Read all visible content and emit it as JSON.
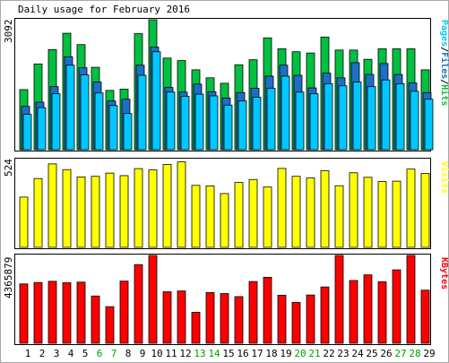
{
  "chart_data": {
    "type": "bar",
    "title": "Daily usage for February 2016",
    "categories": [
      "1",
      "2",
      "3",
      "4",
      "5",
      "6",
      "7",
      "8",
      "9",
      "10",
      "11",
      "12",
      "13",
      "14",
      "15",
      "16",
      "17",
      "18",
      "19",
      "20",
      "21",
      "22",
      "23",
      "24",
      "25",
      "26",
      "27",
      "28",
      "29"
    ],
    "weekend_days": [
      "6",
      "7",
      "13",
      "14",
      "20",
      "21",
      "27",
      "28"
    ],
    "panels": [
      {
        "id": "hits",
        "ymax_label": "3092",
        "ymax": 3092,
        "side_label": [
          "Pages",
          "Files",
          "Hits"
        ],
        "series": [
          {
            "name": "Hits",
            "color": "#00c040",
            "values": [
              1430,
              2040,
              2380,
              2770,
              2500,
              1960,
              1410,
              1440,
              2760,
              3092,
              2180,
              2120,
              1900,
              1710,
              1580,
              2020,
              2140,
              2660,
              2400,
              2330,
              2300,
              2680,
              2370,
              2370,
              2150,
              2400,
              2400,
              2400,
              1900
            ]
          },
          {
            "name": "Files",
            "color": "#1e6ec8",
            "values": [
              1030,
              1130,
              1500,
              2210,
              1950,
              1610,
              1160,
              1200,
              2010,
              2440,
              1480,
              1370,
              1560,
              1380,
              1230,
              1360,
              1460,
              1750,
              2010,
              1770,
              1470,
              1820,
              1710,
              2070,
              1790,
              2050,
              1790,
              1590,
              1360
            ]
          },
          {
            "name": "Pages",
            "color": "#00c8ff",
            "values": [
              840,
              1000,
              1330,
              2010,
              1780,
              1350,
              1050,
              860,
              1770,
              2330,
              1370,
              1270,
              1320,
              1280,
              1060,
              1160,
              1250,
              1460,
              1750,
              1370,
              1330,
              1570,
              1520,
              1610,
              1500,
              1660,
              1570,
              1390,
              1200
            ]
          }
        ]
      },
      {
        "id": "visits",
        "ymax_label": "524",
        "ymax": 524,
        "side_label": [
          "Visits"
        ],
        "series": [
          {
            "name": "Visits",
            "color": "#ffff00",
            "values": [
              300,
              411,
              498,
              464,
              420,
              424,
              443,
              428,
              470,
              462,
              495,
              510,
              370,
              367,
              321,
              387,
              405,
              360,
              471,
              424,
              414,
              457,
              368,
              445,
              418,
              393,
              395,
              467,
              441
            ]
          }
        ]
      },
      {
        "id": "kbytes",
        "ymax_label": "4365879",
        "ymax": 4365879,
        "side_label": [
          "KBytes"
        ],
        "series": [
          {
            "name": "KBytes",
            "color": "#ff0000",
            "values": [
              2950000,
              3020000,
              3080000,
              3010000,
              3040000,
              2350000,
              1820000,
              3090000,
              3910000,
              4365879,
              2560000,
              2600000,
              1540000,
              2520000,
              2470000,
              2320000,
              3070000,
              3280000,
              2390000,
              2030000,
              2400000,
              2800000,
              4365879,
              3120000,
              3400000,
              3060000,
              3650000,
              4365879,
              2640000
            ]
          }
        ]
      }
    ]
  }
}
